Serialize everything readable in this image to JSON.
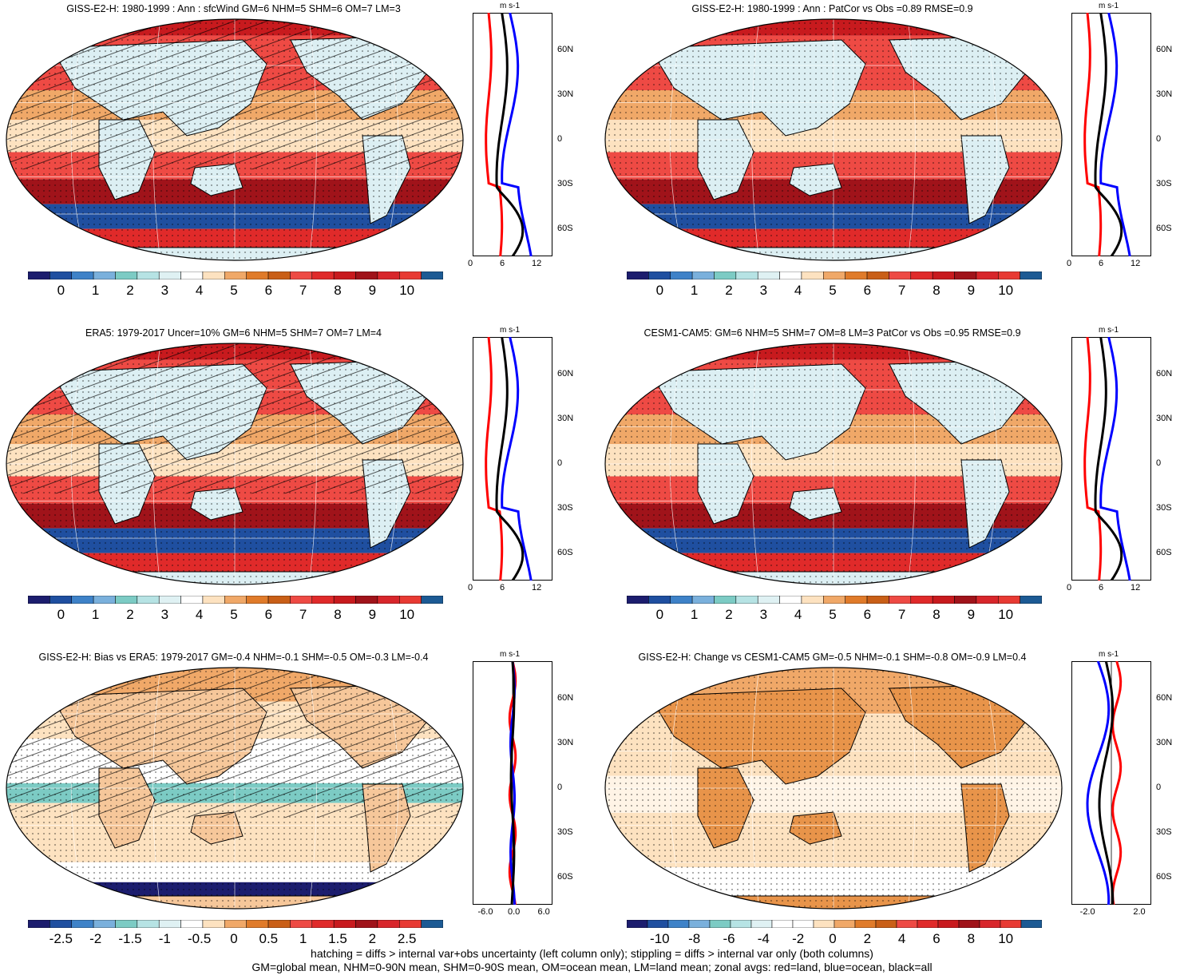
{
  "panels": [
    {
      "title": "GISS-E2-H: 1980-1999 : Ann : sfcWind GM=6 NHM=5 SHM=6 OM=7 LM=3",
      "hatched": true,
      "style": "mean",
      "zonal": {
        "units": "m s-1",
        "xticks": [
          "0",
          "6",
          "12"
        ],
        "xlim": [
          0,
          15
        ],
        "lat_labels": [
          "60N",
          "30N",
          "0",
          "30S",
          "60S"
        ]
      },
      "colorbar_labels": [
        "0",
        "1",
        "2",
        "3",
        "4",
        "5",
        "6",
        "7",
        "8",
        "9",
        "10"
      ]
    },
    {
      "title": "GISS-E2-H: 1980-1999 : Ann : PatCor vs Obs =0.89 RMSE=0.9",
      "hatched": false,
      "style": "mean",
      "zonal": {
        "units": "m s-1",
        "xticks": [
          "0",
          "6",
          "12"
        ],
        "xlim": [
          0,
          15
        ],
        "lat_labels": [
          "60N",
          "30N",
          "0",
          "30S",
          "60S"
        ]
      },
      "colorbar_labels": [
        "0",
        "1",
        "2",
        "3",
        "4",
        "5",
        "6",
        "7",
        "8",
        "9",
        "10"
      ]
    },
    {
      "title": "ERA5: 1979-2017 Uncer=10% GM=6 NHM=5 SHM=7 OM=7 LM=4",
      "hatched": true,
      "style": "mean",
      "zonal": {
        "units": "m s-1",
        "xticks": [
          "0",
          "6",
          "12"
        ],
        "xlim": [
          0,
          15
        ],
        "lat_labels": [
          "60N",
          "30N",
          "0",
          "30S",
          "60S"
        ]
      },
      "colorbar_labels": [
        "0",
        "1",
        "2",
        "3",
        "4",
        "5",
        "6",
        "7",
        "8",
        "9",
        "10"
      ]
    },
    {
      "title": "CESM1-CAM5: GM=6 NHM=5 SHM=7 OM=8 LM=3 PatCor vs Obs =0.95 RMSE=0.9",
      "hatched": false,
      "style": "mean",
      "zonal": {
        "units": "m s-1",
        "xticks": [
          "0",
          "6",
          "12"
        ],
        "xlim": [
          0,
          15
        ],
        "lat_labels": [
          "60N",
          "30N",
          "0",
          "30S",
          "60S"
        ]
      },
      "colorbar_labels": [
        "0",
        "1",
        "2",
        "3",
        "4",
        "5",
        "6",
        "7",
        "8",
        "9",
        "10"
      ]
    },
    {
      "title": "GISS-E2-H: Bias vs ERA5: 1979-2017 GM=-0.4 NHM=-0.1 SHM=-0.5 OM=-0.3 LM=-0.4",
      "hatched": true,
      "style": "bias",
      "zonal": {
        "units": "m s-1",
        "xticks": [
          "-6.0",
          "0.0",
          "6.0"
        ],
        "xlim": [
          -8,
          8
        ],
        "lat_labels": [
          "60N",
          "30N",
          "0",
          "30S",
          "60S"
        ]
      },
      "colorbar_labels": [
        "-2.5",
        "-2",
        "-1.5",
        "-1",
        "-0.5",
        "0",
        "0.5",
        "1",
        "1.5",
        "2",
        "2.5"
      ]
    },
    {
      "title": "GISS-E2-H: Change vs CESM1-CAM5 GM=-0.5 NHM=-0.1 SHM=-0.8 OM=-0.9 LM=0.4",
      "hatched": false,
      "style": "change",
      "zonal": {
        "units": "m s-1",
        "xticks": [
          "-2.0",
          "2.0"
        ],
        "xlim": [
          -3,
          3
        ],
        "lat_labels": [
          "60N",
          "30N",
          "0",
          "30S",
          "60S"
        ]
      },
      "colorbar_labels": [
        "-10",
        "-8",
        "-6",
        "-4",
        "-2",
        "0",
        "2",
        "4",
        "6",
        "8",
        "10"
      ]
    }
  ],
  "colors": {
    "palette": [
      "#1c1d6e",
      "#1f4fa0",
      "#3e82c8",
      "#7ab0dc",
      "#7ccbc4",
      "#b6e3e4",
      "#dff1f3",
      "#ffffff",
      "#fde2c0",
      "#f0a868",
      "#e07b2a",
      "#c95f17",
      "#ee4a44",
      "#e02a2a",
      "#c81a1e",
      "#a0131a",
      "#d8262b",
      "#e83a33",
      "#1c5a94"
    ],
    "land": "#dceff3",
    "zonal_land": "#ff0000",
    "zonal_ocean": "#0000ff",
    "zonal_all": "#000000"
  },
  "footer": {
    "line1": "hatching = diffs > internal var+obs uncertainty (left column only); stippling = diffs > internal var only (both columns)",
    "line2": "GM=global mean, NHM=0-90N mean, SHM=0-90S mean, OM=ocean mean, LM=land mean; zonal avgs: red=land, blue=ocean, black=all"
  }
}
